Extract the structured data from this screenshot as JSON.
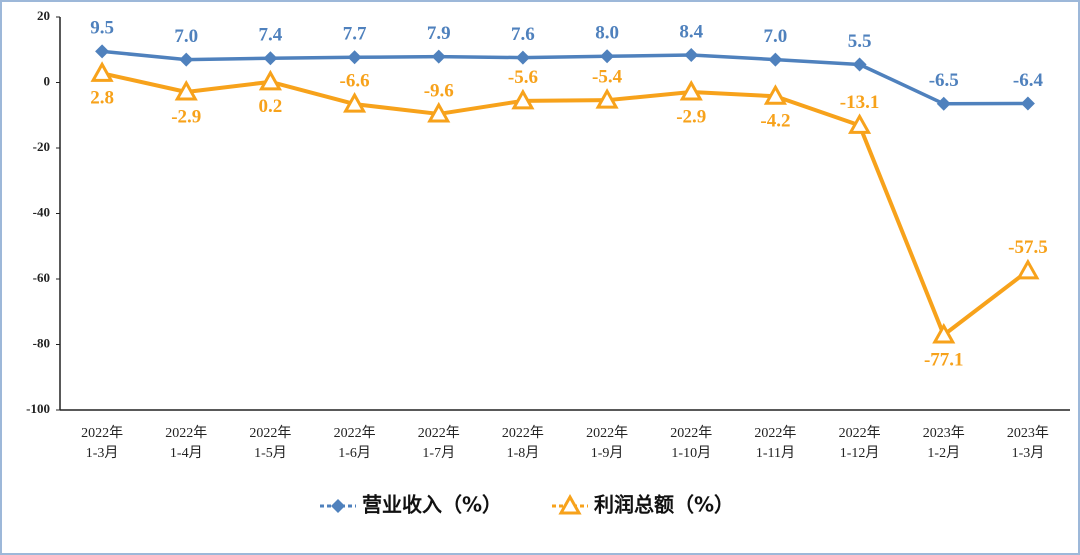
{
  "chart_data": {
    "type": "line",
    "categories": [
      [
        "2022年",
        "1-3月"
      ],
      [
        "2022年",
        "1-4月"
      ],
      [
        "2022年",
        "1-5月"
      ],
      [
        "2022年",
        "1-6月"
      ],
      [
        "2022年",
        "1-7月"
      ],
      [
        "2022年",
        "1-8月"
      ],
      [
        "2022年",
        "1-9月"
      ],
      [
        "2022年",
        "1-10月"
      ],
      [
        "2022年",
        "1-11月"
      ],
      [
        "2022年",
        "1-12月"
      ],
      [
        "2023年",
        "1-2月"
      ],
      [
        "2023年",
        "1-3月"
      ]
    ],
    "series": [
      {
        "name": "营业收入（%）",
        "color": "#4f81bd",
        "marker": "diamond",
        "values": [
          9.5,
          7.0,
          7.4,
          7.7,
          7.9,
          7.6,
          8.0,
          8.4,
          7.0,
          5.5,
          -6.5,
          -6.4
        ],
        "value_labels": [
          "9.5",
          "7.0",
          "7.4",
          "7.7",
          "7.9",
          "7.6",
          "8.0",
          "8.4",
          "7.0",
          "5.5",
          "-6.5",
          "-6.4"
        ]
      },
      {
        "name": "利润总额（%）",
        "color": "#f7a21b",
        "marker": "triangle",
        "values": [
          2.8,
          -2.9,
          0.2,
          -6.6,
          -9.6,
          -5.6,
          -5.4,
          -2.9,
          -4.2,
          -13.1,
          -77.1,
          -57.5
        ],
        "value_labels": [
          "2.8",
          "-2.9",
          "0.2",
          "-6.6",
          "-9.6",
          "-5.6",
          "-5.4",
          "-2.9",
          "-4.2",
          "-13.1",
          "-77.1",
          "-57.5"
        ]
      }
    ],
    "ylim": [
      -100,
      20
    ],
    "yticks": [
      20,
      0,
      -20,
      -40,
      -60,
      -80,
      -100
    ],
    "grid": false,
    "legend": "bottom"
  }
}
